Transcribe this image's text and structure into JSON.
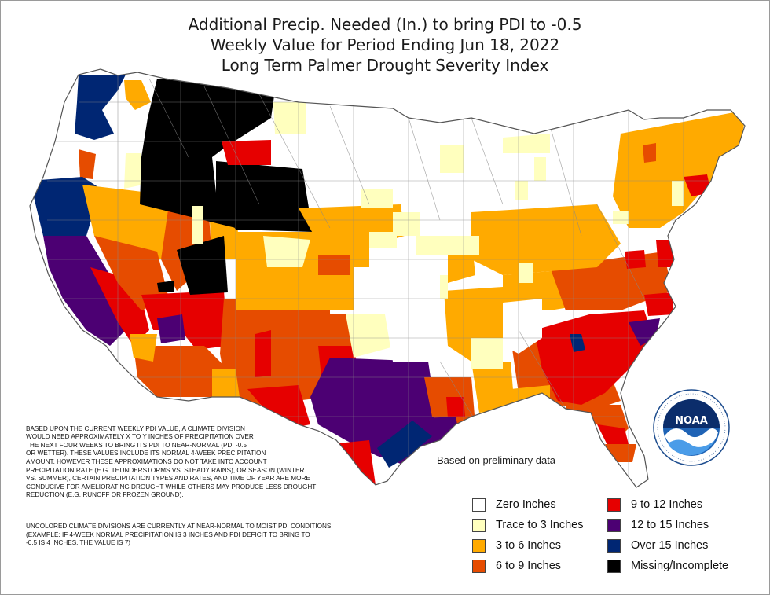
{
  "title": {
    "line1": "Additional Precip. Needed (In.) to bring PDI to -0.5",
    "line2": "Weekly Value for Period Ending Jun 18, 2022",
    "line3": "Long Term Palmer Drought Severity Index"
  },
  "note": {
    "paragraph1": "BASED UPON THE CURRENT WEEKLY PDI VALUE, A CLIMATE DIVISION\nWOULD NEED APPROXIMATELY X TO Y INCHES OF PRECIPITATION OVER\nTHE NEXT FOUR WEEKS TO BRING ITS PDI TO NEAR-NORMAL (PDI -0.5\nOR WETTER). THESE VALUES INCLUDE ITS NORMAL 4-WEEK PRECIPITATION\nAMOUNT. HOWEVER THESE APPROXIMATIONS DO NOT TAKE INTO ACCOUNT\nPRECIPITATION RATE (E.G. THUNDERSTORMS VS. STEADY RAINS), OR SEASON (WINTER\nVS. SUMMER), CERTAIN PRECIPITATION TYPES AND RATES, AND TIME OF YEAR ARE MORE\nCONDUCIVE FOR AMELIORATING DROUGHT WHILE OTHERS MAY PRODUCE LESS DROUGHT\nREDUCTION (E.G. RUNOFF OR FROZEN GROUND).",
    "paragraph2": "UNCOLORED CLIMATE DIVISIONS ARE CURRENTLY AT NEAR-NORMAL TO MOIST PDI CONDITIONS.\n(EXAMPLE: IF 4-WEEK NORMAL PRECIPITATION IS 3 INCHES AND PDI DEFICIT TO BRING TO\n-0.5 IS 4 INCHES, THE VALUE IS 7)"
  },
  "prelim": "Based on preliminary data",
  "legend": [
    {
      "label": "Zero Inches",
      "color": "#ffffff"
    },
    {
      "label": "Trace to 3 Inches",
      "color": "#ffffbe"
    },
    {
      "label": "3 to 6 Inches",
      "color": "#ffaa00"
    },
    {
      "label": "6 to 9 Inches",
      "color": "#e64c00"
    },
    {
      "label": "9 to 12 Inches",
      "color": "#e60000"
    },
    {
      "label": "12 to 15 Inches",
      "color": "#4c0073"
    },
    {
      "label": "Over 15 Inches",
      "color": "#002673"
    },
    {
      "label": "Missing/Incomplete",
      "color": "#000000"
    }
  ],
  "logo": {
    "text": "NOAA",
    "ring_text": "NATIONAL OCEANIC AND ATMOSPHERIC ADMINISTRATION · U.S. DEPARTMENT OF COMMERCE"
  }
}
